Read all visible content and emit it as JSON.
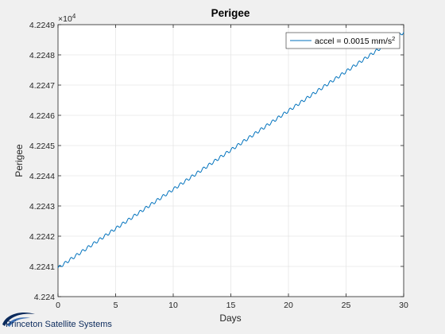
{
  "chart_data": {
    "type": "line",
    "title": "Perigee",
    "xlabel": "Days",
    "ylabel": "Perigee",
    "xlim": [
      0,
      30
    ],
    "ylim": [
      42240,
      42249
    ],
    "y_exponent_label": "×10",
    "y_exponent_power": "4",
    "xticks": [
      0,
      5,
      10,
      15,
      20,
      25,
      30
    ],
    "xtick_labels": [
      "0",
      "5",
      "10",
      "15",
      "20",
      "25",
      "30"
    ],
    "yticks": [
      42240,
      42241,
      42242,
      42243,
      42244,
      42245,
      42246,
      42247,
      42248,
      42249
    ],
    "ytick_labels": [
      "4.224",
      "4.2241",
      "4.2242",
      "4.2243",
      "4.2244",
      "4.2245",
      "4.2246",
      "4.2247",
      "4.2248",
      "4.2249"
    ],
    "grid": true,
    "legend_position": "top-right",
    "series": [
      {
        "name": "accel = 0.0015 mm/s",
        "name_superscript": "2",
        "color": "#0072bd",
        "x_start": 0,
        "x_end": 30,
        "y_start": 42240.95,
        "y_end": 42248.75,
        "oscillation_period_days": 0.5,
        "oscillation_amplitude": 0.05
      }
    ]
  },
  "footer": {
    "logo_text": "Princeton Satellite Systems"
  },
  "colors": {
    "background": "#f0f0f0",
    "plot_bg": "#ffffff",
    "grid": "#e6e6e6",
    "axis": "#262626",
    "line": "#0072bd",
    "logo": "#0b2a5c"
  }
}
